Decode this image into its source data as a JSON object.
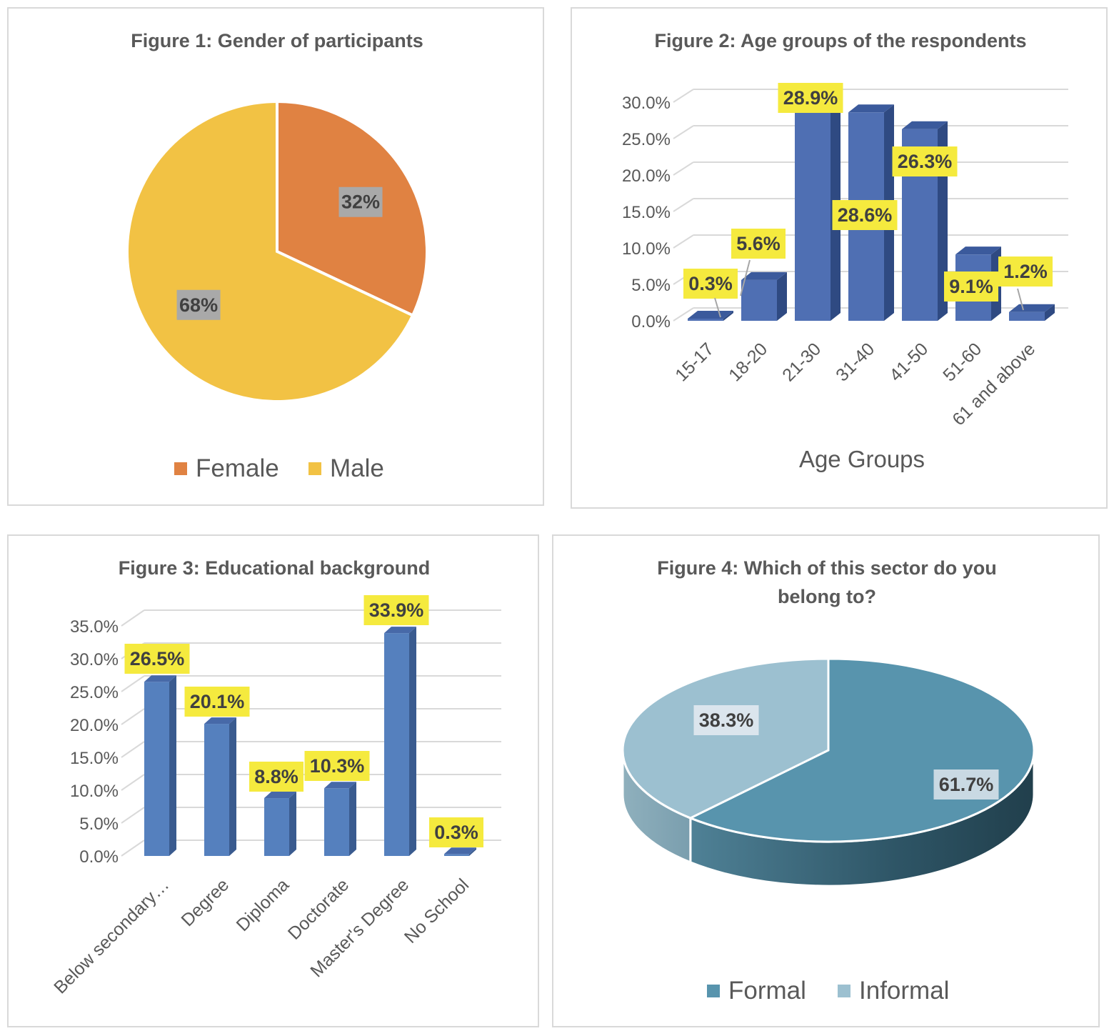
{
  "chart_data": [
    {
      "type": "pie",
      "title": "Figure 1: Gender of participants",
      "categories": [
        "Female",
        "Male"
      ],
      "values": [
        32,
        68
      ],
      "labels": [
        "32%",
        "68%"
      ],
      "colors": [
        "#e08242",
        "#f2c244"
      ],
      "legend": "bottom"
    },
    {
      "type": "bar",
      "title": "Figure 2: Age groups of the respondents",
      "categories": [
        "15-17",
        "18-20",
        "21-30",
        "31-40",
        "41-50",
        "51-60",
        "61 and above"
      ],
      "values": [
        0.3,
        5.6,
        28.9,
        28.6,
        26.3,
        9.1,
        1.2
      ],
      "labels": [
        "0.3%",
        "5.6%",
        "28.9%",
        "28.6%",
        "26.3%",
        "9.1%",
        "1.2%"
      ],
      "yticks": [
        "0.0%",
        "5.0%",
        "10.0%",
        "15.0%",
        "20.0%",
        "25.0%",
        "30.0%"
      ],
      "ylim": [
        0,
        30
      ],
      "xlabel": "Age Groups",
      "ylabel": "",
      "grid": true,
      "color": "#4f6fb3"
    },
    {
      "type": "bar",
      "title": "Figure 3: Educational background",
      "categories": [
        "Below secondary…",
        "Degree",
        "Diploma",
        "Doctorate",
        "Master's Degree",
        "No School"
      ],
      "values": [
        26.5,
        20.1,
        8.8,
        10.3,
        33.9,
        0.3
      ],
      "labels": [
        "26.5%",
        "20.1%",
        "8.8%",
        "10.3%",
        "33.9%",
        "0.3%"
      ],
      "yticks": [
        "0.0%",
        "5.0%",
        "10.0%",
        "15.0%",
        "20.0%",
        "25.0%",
        "30.0%",
        "35.0%"
      ],
      "ylim": [
        0,
        35
      ],
      "xlabel": "",
      "ylabel": "",
      "grid": true,
      "color": "#5580be"
    },
    {
      "type": "pie",
      "title": "Figure 4: Which of this sector do you belong to?",
      "title_lines": [
        "Figure 4: Which of this sector do you",
        "belong to?"
      ],
      "categories": [
        "Formal",
        "Informal"
      ],
      "values": [
        61.7,
        38.3
      ],
      "labels": [
        "61.7%",
        "38.3%"
      ],
      "colors": [
        "#5894ad",
        "#9cc0d0"
      ],
      "legend": "bottom"
    }
  ]
}
